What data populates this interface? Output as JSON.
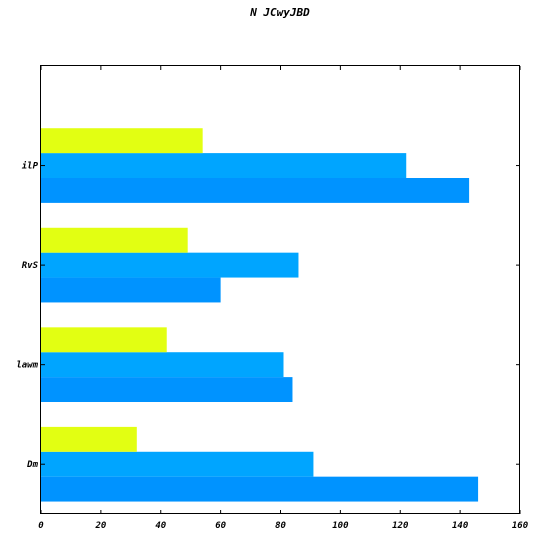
{
  "chart_data": {
    "type": "bar",
    "orientation": "horizontal",
    "title": "N JCwyJBD",
    "xlabel": "",
    "ylabel": "",
    "categories": [
      "Dm",
      "lawm",
      "RvS",
      "ilP"
    ],
    "series": [
      {
        "color": "#0093ff",
        "values": [
          146,
          84,
          60,
          143
        ]
      },
      {
        "color": "#00a5ff",
        "values": [
          91,
          81,
          86,
          122
        ]
      },
      {
        "color": "#e2ff12",
        "values": [
          32,
          42,
          49,
          54
        ]
      }
    ],
    "xlim": [
      0,
      160
    ],
    "xticks": [
      0,
      20,
      40,
      60,
      80,
      100,
      120,
      140,
      160
    ],
    "ylim": [
      -0.5,
      4.0
    ],
    "grid": false,
    "legend": "none"
  }
}
